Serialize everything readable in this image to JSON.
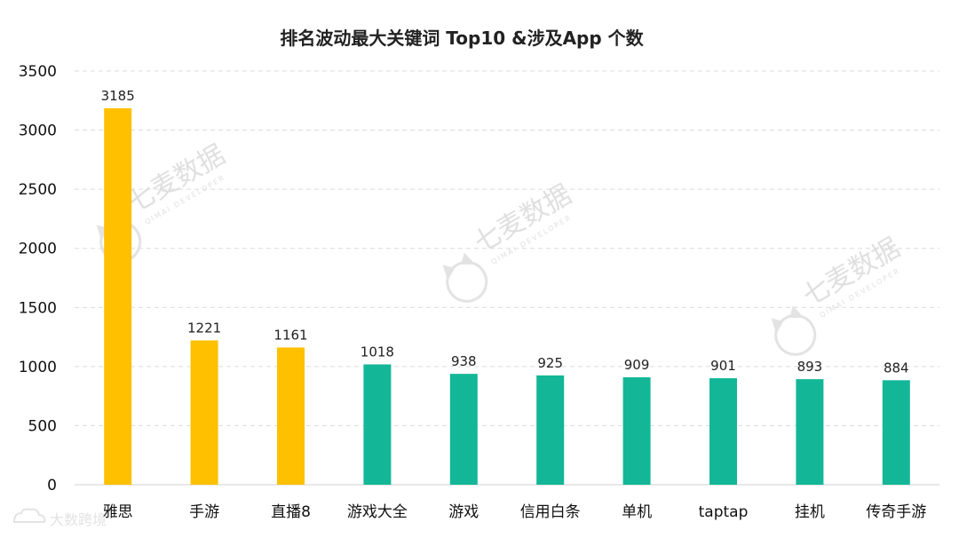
{
  "colors": {
    "highlight": "#FFC000",
    "normal": "#13B797",
    "grid": "#DCDCDC",
    "text": "#111111"
  },
  "chart_data": {
    "type": "bar",
    "title": "排名波动最大关键词 Top10 &涉及App 个数",
    "xlabel": "",
    "ylabel": "",
    "categories": [
      "雅思",
      "手游",
      "直播8",
      "游戏大全",
      "游戏",
      "信用白条",
      "单机",
      "taptap",
      "挂机",
      "传奇手游"
    ],
    "values": [
      3185,
      1221,
      1161,
      1018,
      938,
      925,
      909,
      901,
      893,
      884
    ],
    "highlight_count": 3,
    "ylim": [
      0,
      3500
    ],
    "yticks": [
      0,
      500,
      1000,
      1500,
      2000,
      2500,
      3000,
      3500
    ],
    "grid": true,
    "legend": "none",
    "data_labels": true
  },
  "watermarks": {
    "brand_cn": "七麦数据",
    "brand_en": "QIMAI DEVELOPER",
    "brand_icon": "cat-icon",
    "corner": "大数跨境"
  }
}
